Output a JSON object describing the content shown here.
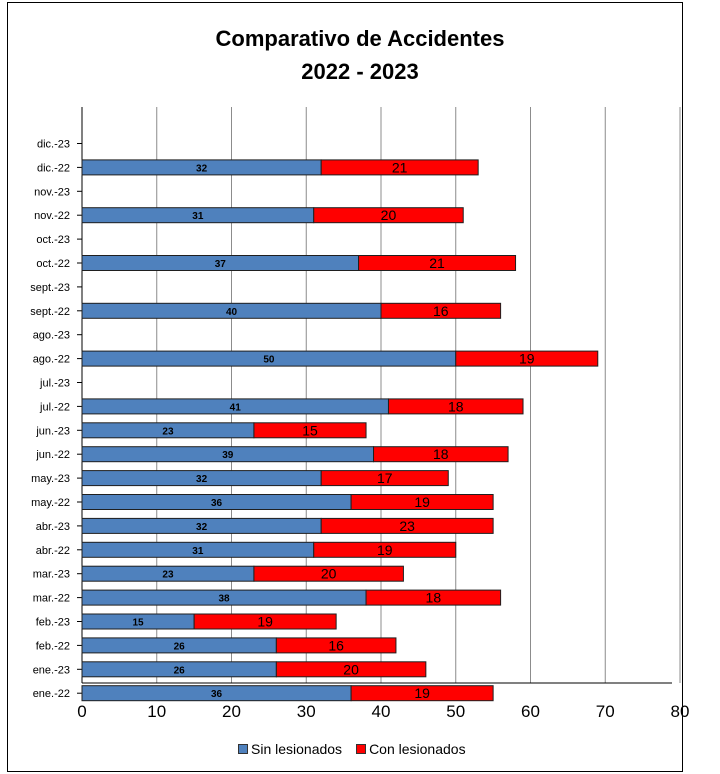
{
  "chart_data": {
    "type": "bar",
    "orientation": "horizontal",
    "stacked": true,
    "title": "Comparativo de Accidentes",
    "subtitle": "2022 - 2023",
    "categories": [
      "dic.-23",
      "dic.-22",
      "nov.-23",
      "nov.-22",
      "oct.-23",
      "oct.-22",
      "sept.-23",
      "sept.-22",
      "ago.-23",
      "ago.-22",
      "jul.-23",
      "jul.-22",
      "jun.-23",
      "jun.-22",
      "may.-23",
      "may.-22",
      "abr.-23",
      "abr.-22",
      "mar.-23",
      "mar.-22",
      "feb.-23",
      "feb.-22",
      "ene.-23",
      "ene.-22"
    ],
    "series": [
      {
        "name": "Sin lesionados",
        "color": "#4f81bd",
        "values": [
          null,
          32,
          null,
          31,
          null,
          37,
          null,
          40,
          null,
          50,
          null,
          41,
          23,
          39,
          32,
          36,
          32,
          31,
          23,
          38,
          15,
          26,
          26,
          36
        ]
      },
      {
        "name": "Con lesionados",
        "color": "#ff0000",
        "values": [
          null,
          21,
          null,
          20,
          null,
          21,
          null,
          16,
          null,
          19,
          null,
          18,
          15,
          18,
          17,
          19,
          23,
          19,
          20,
          18,
          19,
          16,
          20,
          19
        ]
      }
    ],
    "xlim": [
      0,
      80
    ],
    "xticks": [
      "0",
      "10",
      "20",
      "30",
      "40",
      "50",
      "60",
      "70",
      "80"
    ],
    "grid": true,
    "legend_position": "bottom"
  }
}
